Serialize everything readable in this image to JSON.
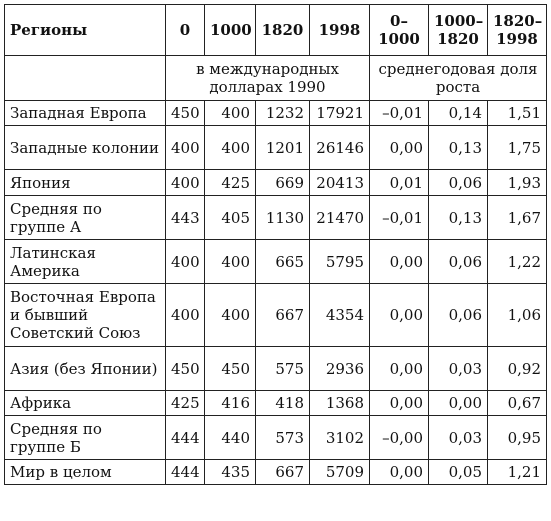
{
  "table": {
    "headers": [
      "Регионы",
      "0",
      "1000",
      "1820",
      "1998",
      "0–1000",
      "1000–1820",
      "1820–1998"
    ],
    "units": [
      "в международных долларах 1990",
      "среднегодовая доля роста"
    ],
    "rows": [
      {
        "region": "Западная Европа",
        "values": [
          "450",
          "400",
          "1232",
          "17921",
          "–0,01",
          "0,14",
          "1,51"
        ]
      },
      {
        "region": "Западные колонии",
        "values": [
          "400",
          "400",
          "1201",
          "26146",
          "0,00",
          "0,13",
          "1,75"
        ]
      },
      {
        "region": "Япония",
        "values": [
          "400",
          "425",
          "669",
          "20413",
          "0,01",
          "0,06",
          "1,93"
        ]
      },
      {
        "region": "Средняя по группе А",
        "values": [
          "443",
          "405",
          "1130",
          "21470",
          "–0,01",
          "0,13",
          "1,67"
        ]
      },
      {
        "region": "Латинская Америка",
        "values": [
          "400",
          "400",
          "665",
          "5795",
          "0,00",
          "0,06",
          "1,22"
        ]
      },
      {
        "region": "Восточная Европа и бывший Советский Союз",
        "values": [
          "400",
          "400",
          "667",
          "4354",
          "0,00",
          "0,06",
          "1,06"
        ]
      },
      {
        "region": "Азия (без Японии)",
        "values": [
          "450",
          "450",
          "575",
          "2936",
          "0,00",
          "0,03",
          "0,92"
        ]
      },
      {
        "region": "Африка",
        "values": [
          "425",
          "416",
          "418",
          "1368",
          "0,00",
          "0,00",
          "0,67"
        ]
      },
      {
        "region": "Средняя по группе Б",
        "values": [
          "444",
          "440",
          "573",
          "3102",
          "–0,00",
          "0,03",
          "0,95"
        ]
      },
      {
        "region": "Мир в целом",
        "values": [
          "444",
          "435",
          "667",
          "5709",
          "0,00",
          "0,05",
          "1,21"
        ]
      }
    ]
  }
}
